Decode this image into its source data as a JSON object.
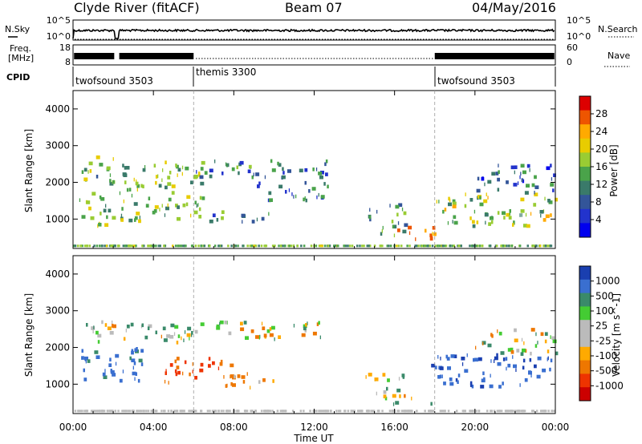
{
  "header": {
    "station": "Clyde River (fitACF)",
    "beam": "Beam 07",
    "date": "04/May/2016"
  },
  "panels": {
    "nsky": {
      "label": "N.Sky",
      "left_ticks": [
        "10^5",
        "10^0"
      ],
      "right_ticks": [
        "10^5",
        "10^0"
      ],
      "right_label": "N.Search"
    },
    "freq": {
      "label_line1": "Freq.",
      "label_line2": "[MHz]",
      "left_ticks": [
        "18",
        "8"
      ],
      "right_ticks": [
        "60",
        "0"
      ],
      "right_label": "Nave"
    },
    "cpid": {
      "label": "CPID",
      "segments": [
        {
          "name": "twofsound 3503",
          "start_hour": 0,
          "end_hour": 6
        },
        {
          "name": "themis 3300",
          "start_hour": 6,
          "end_hour": 18
        },
        {
          "name": "twofsound 3503",
          "start_hour": 18,
          "end_hour": 24
        }
      ]
    }
  },
  "power_colorbar": {
    "label": "Power [dB]",
    "ticks": [
      "28",
      "24",
      "20",
      "16",
      "12",
      "8",
      "4"
    ],
    "colors": [
      "#dd0000",
      "#ee5500",
      "#ffaa00",
      "#e8cc00",
      "#99cc33",
      "#4aa34a",
      "#3a7a6a",
      "#335599",
      "#2233cc",
      "#0000ee"
    ]
  },
  "velocity_colorbar": {
    "label": "Velocity [m s^-1]",
    "ticks": [
      "1000",
      "500",
      "100",
      "25",
      "-25",
      "-100",
      "-500",
      "-1000"
    ],
    "colors": [
      "#1a3fb0",
      "#3a6fd0",
      "#3a8a6a",
      "#44cc33",
      "#bbbbbb",
      "#bbbbbb",
      "#ffaa00",
      "#ee7700",
      "#ee3300",
      "#cc0000"
    ]
  },
  "axes": {
    "ylabel": "Slant Range [km]",
    "yticks": [
      "1000",
      "2000",
      "3000",
      "4000"
    ],
    "xticks": [
      "00:00",
      "04:00",
      "08:00",
      "12:00",
      "16:00",
      "20:00",
      "00:00"
    ],
    "xlabel": "Time UT"
  },
  "chart_data": [
    {
      "type": "heatmap",
      "title": "Power",
      "x_unit": "hour UT",
      "xlim": [
        0,
        24
      ],
      "ylim": [
        200,
        4500
      ],
      "colorbar_label": "Power [dB]",
      "colorbar_range": [
        0,
        32
      ],
      "regions": [
        {
          "x": [
            0.3,
            2.0
          ],
          "y": [
            800,
            2700
          ],
          "value": 15
        },
        {
          "x": [
            2.3,
            6.5
          ],
          "y": [
            900,
            2600
          ],
          "value": 16
        },
        {
          "x": [
            5.5,
            12.8
          ],
          "y": [
            2100,
            2600
          ],
          "value": 10
        },
        {
          "x": [
            6.5,
            10.0
          ],
          "y": [
            900,
            1200
          ],
          "value": 12
        },
        {
          "x": [
            9.0,
            13.0
          ],
          "y": [
            1500,
            2000
          ],
          "value": 9
        },
        {
          "x": [
            14.5,
            16.5
          ],
          "y": [
            500,
            1400
          ],
          "value": 12
        },
        {
          "x": [
            15.8,
            18.3
          ],
          "y": [
            450,
            800
          ],
          "value": 24
        },
        {
          "x": [
            17.8,
            24.0
          ],
          "y": [
            800,
            1700
          ],
          "value": 17
        },
        {
          "x": [
            20.0,
            24.0
          ],
          "y": [
            1700,
            2500
          ],
          "value": 8
        }
      ]
    },
    {
      "type": "heatmap",
      "title": "Velocity",
      "x_unit": "hour UT",
      "xlim": [
        0,
        24
      ],
      "ylim": [
        200,
        4500
      ],
      "colorbar_label": "Velocity [m s^-1]",
      "colorbar_range": [
        -1000,
        1000
      ],
      "regions": [
        {
          "x": [
            0.5,
            6.0
          ],
          "y": [
            2100,
            2700
          ],
          "value": 0
        },
        {
          "x": [
            0.3,
            3.5
          ],
          "y": [
            1000,
            2000
          ],
          "value": 400
        },
        {
          "x": [
            5.5,
            12.5
          ],
          "y": [
            2200,
            2700
          ],
          "value": 0
        },
        {
          "x": [
            4.5,
            8.0
          ],
          "y": [
            1000,
            1700
          ],
          "value": -300
        },
        {
          "x": [
            7.0,
            10.0
          ],
          "y": [
            900,
            1300
          ],
          "value": -200
        },
        {
          "x": [
            14.5,
            16.5
          ],
          "y": [
            600,
            1300
          ],
          "value": 100
        },
        {
          "x": [
            15.8,
            18.0
          ],
          "y": [
            450,
            700
          ],
          "value": 60
        },
        {
          "x": [
            17.8,
            24.0
          ],
          "y": [
            900,
            1800
          ],
          "value": 700
        },
        {
          "x": [
            20.0,
            24.0
          ],
          "y": [
            1800,
            2500
          ],
          "value": 0
        }
      ]
    }
  ]
}
